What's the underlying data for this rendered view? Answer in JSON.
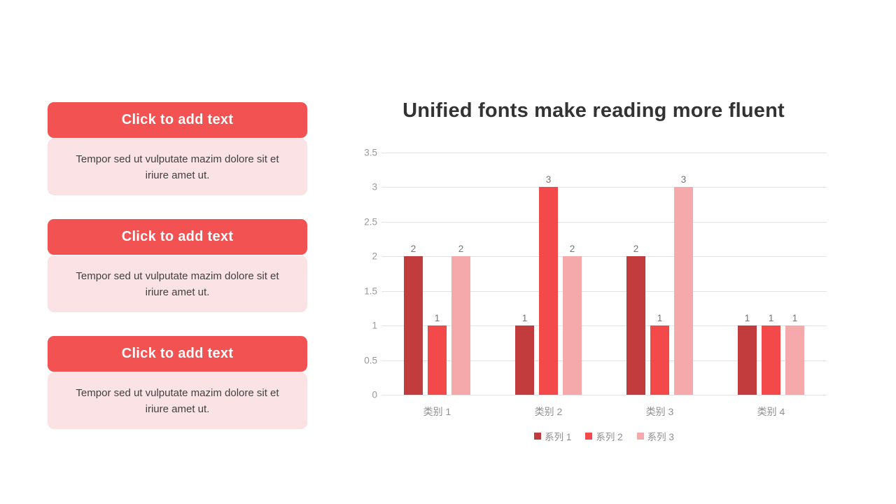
{
  "left_panel": {
    "blocks": [
      {
        "button_label": "Click to add text",
        "body": "Tempor sed ut vulputate mazim dolore sit et iriure amet ut."
      },
      {
        "button_label": "Click to add text",
        "body": "Tempor sed ut vulputate mazim dolore sit et iriure amet ut."
      },
      {
        "button_label": "Click to add text",
        "body": "Tempor sed ut vulputate mazim dolore sit et iriure amet ut."
      }
    ],
    "colors": {
      "button_bg": "#f25252",
      "button_text": "#ffffff",
      "box_bg": "#fbe3e5",
      "box_text": "#404040"
    }
  },
  "chart_data": {
    "type": "bar",
    "title": "Unified fonts make reading more fluent",
    "title_color": "#333333",
    "categories": [
      "类别 1",
      "类别 2",
      "类别 3",
      "类别 4"
    ],
    "series": [
      {
        "name": "系列 1",
        "color": "#c23b3d",
        "values": [
          2,
          1,
          2,
          1
        ]
      },
      {
        "name": "系列 2",
        "color": "#f4494b",
        "values": [
          1,
          3,
          1,
          1
        ]
      },
      {
        "name": "系列 3",
        "color": "#f6a9ab",
        "values": [
          2,
          2,
          3,
          1
        ]
      }
    ],
    "xlabel": "",
    "ylabel": "",
    "ylim": [
      0,
      3.5
    ],
    "ytick_step": 0.5,
    "grid": true,
    "data_labels": true,
    "legend_position": "bottom",
    "axis_text_color": "#999999",
    "category_text_color": "#8f8f8f",
    "data_label_color": "#757575",
    "grid_color": "#e3e3e3"
  }
}
